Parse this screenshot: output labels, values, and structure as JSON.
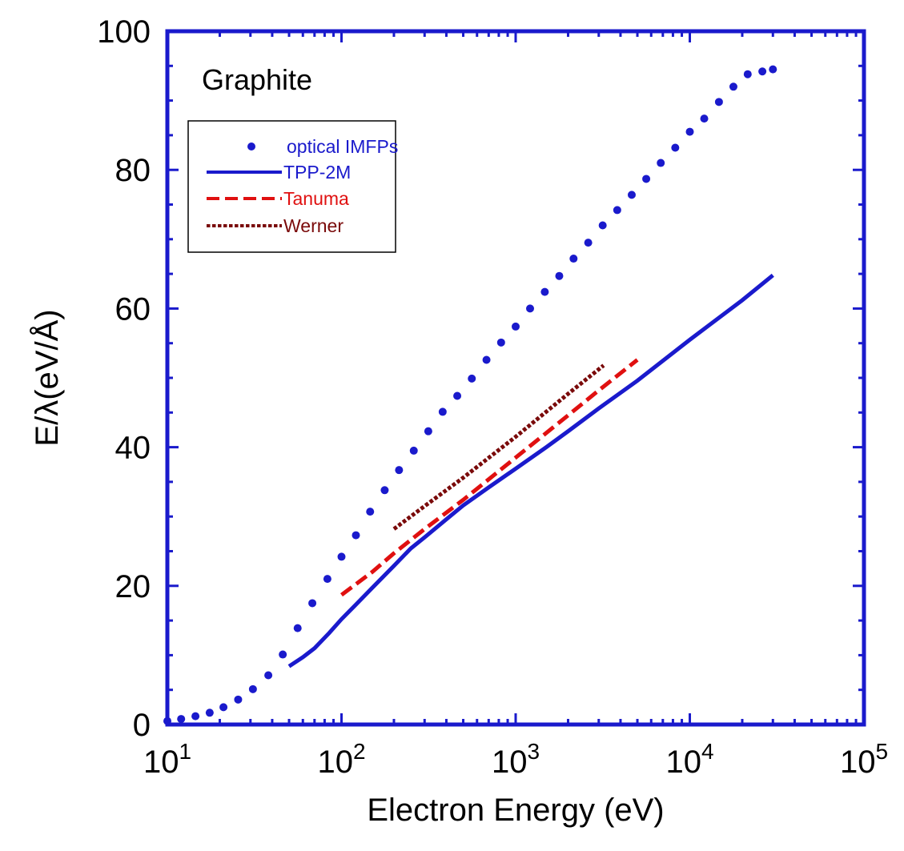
{
  "chart_data": {
    "type": "line",
    "title": "",
    "annotation": "Graphite",
    "xlabel": "Electron Energy (eV)",
    "ylabel": "E/λ(eV/Å)",
    "xscale": "log",
    "xlim": [
      10,
      100000
    ],
    "ylim": [
      0,
      100
    ],
    "x_ticks": [
      {
        "base": "10",
        "exp": "1"
      },
      {
        "base": "10",
        "exp": "2"
      },
      {
        "base": "10",
        "exp": "3"
      },
      {
        "base": "10",
        "exp": "4"
      },
      {
        "base": "10",
        "exp": "5"
      }
    ],
    "y_ticks": [
      "0",
      "20",
      "40",
      "60",
      "80",
      "100"
    ],
    "grid": false,
    "legend_position": "top-left",
    "colors": {
      "axis": "#1a1acc",
      "optical": "#1a1acc",
      "tpp": "#1a1acc",
      "tanuma": "#e01010",
      "werner": "#7a0a0a"
    },
    "series": [
      {
        "name": "optical IMFPs",
        "style": "dots",
        "x": [
          10,
          12,
          14.5,
          17.5,
          21,
          25.5,
          31,
          38,
          46,
          56,
          68,
          83,
          100,
          121,
          146,
          177,
          214,
          260,
          315,
          381,
          462,
          560,
          680,
          825,
          1000,
          1210,
          1470,
          1780,
          2150,
          2610,
          3160,
          3830,
          4640,
          5620,
          6810,
          8250,
          10000,
          12100,
          14700,
          17800,
          21500,
          26100,
          30000
        ],
        "y": [
          0.5,
          0.8,
          1.2,
          1.7,
          2.5,
          3.6,
          5.1,
          7.1,
          10.1,
          13.9,
          17.5,
          21,
          24.2,
          27.3,
          30.7,
          33.8,
          36.7,
          39.5,
          42.3,
          45.1,
          47.4,
          49.9,
          52.6,
          55.1,
          57.4,
          60,
          62.4,
          64.7,
          67.2,
          69.5,
          72,
          74.2,
          76.4,
          78.7,
          81,
          83.2,
          85.5,
          87.4,
          89.8,
          92,
          93.8,
          94.2,
          94.5
        ]
      },
      {
        "name": "TPP-2M",
        "style": "solid",
        "x": [
          50,
          60,
          70,
          85,
          100,
          120,
          150,
          200,
          250,
          300,
          400,
          500,
          700,
          1000,
          1500,
          2000,
          3000,
          5000,
          10000,
          20000,
          30000
        ],
        "y": [
          8.4,
          9.7,
          11,
          13.2,
          15.2,
          17.2,
          19.7,
          22.9,
          25.4,
          27,
          29.6,
          31.6,
          34.2,
          36.9,
          40,
          42.3,
          45.6,
          49.6,
          55.5,
          61.2,
          64.8
        ]
      },
      {
        "name": "Tanuma",
        "style": "dashed",
        "x": [
          100,
          150,
          200,
          300,
          500,
          1000,
          2000,
          3000,
          5000
        ],
        "y": [
          18.7,
          22,
          24.7,
          28.2,
          32.4,
          38.5,
          44.6,
          48.2,
          52.6
        ]
      },
      {
        "name": "Werner",
        "style": "dotted",
        "x": [
          200,
          300,
          500,
          1000,
          2000,
          3200
        ],
        "y": [
          28.2,
          31.5,
          35.6,
          41.5,
          47.7,
          51.8
        ]
      }
    ]
  }
}
